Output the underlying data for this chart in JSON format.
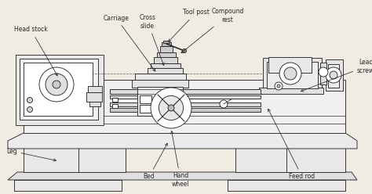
{
  "bg_color": "#f0ece4",
  "line_color": "#2a2a2a",
  "lw": 0.65,
  "figsize": [
    4.74,
    2.48
  ],
  "dpi": 100,
  "labels": {
    "head_stock": "Head stock",
    "carriage": "Carriage",
    "cross_slide": "Cross\nslide",
    "tool_post": "Tool post",
    "compound_rest": "Compound\nrest",
    "lead_screw": "Lead\nscrew",
    "leg": "Leg",
    "bed": "Bed",
    "hand_wheel": "Hand\nwheel",
    "feed_rod": "Feed rod"
  }
}
